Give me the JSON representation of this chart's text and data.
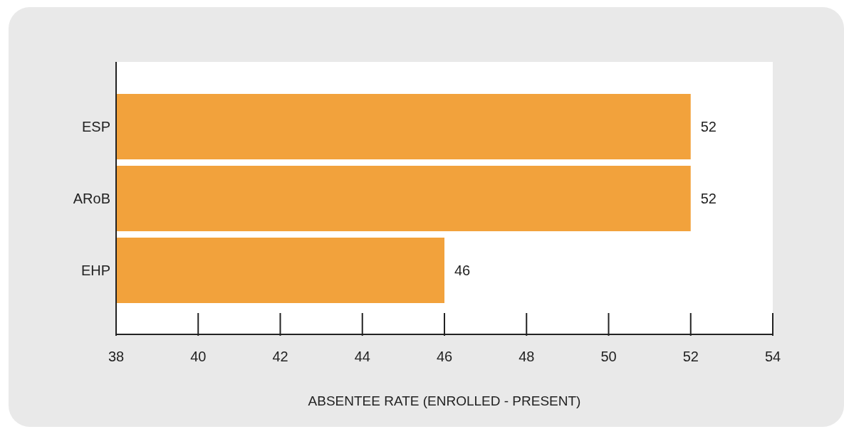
{
  "chart_data": {
    "type": "bar",
    "orientation": "horizontal",
    "xlabel": "ABSENTEE RATE (ENROLLED - PRESENT)",
    "categories": [
      "ESP",
      "ARoB",
      "EHP"
    ],
    "values": [
      52,
      52,
      46
    ],
    "color": "#f2a23c",
    "xlim": [
      38,
      54
    ],
    "xticks": [
      38,
      40,
      42,
      44,
      46,
      48,
      50,
      52,
      54
    ],
    "data_labels": true,
    "grid": false
  }
}
